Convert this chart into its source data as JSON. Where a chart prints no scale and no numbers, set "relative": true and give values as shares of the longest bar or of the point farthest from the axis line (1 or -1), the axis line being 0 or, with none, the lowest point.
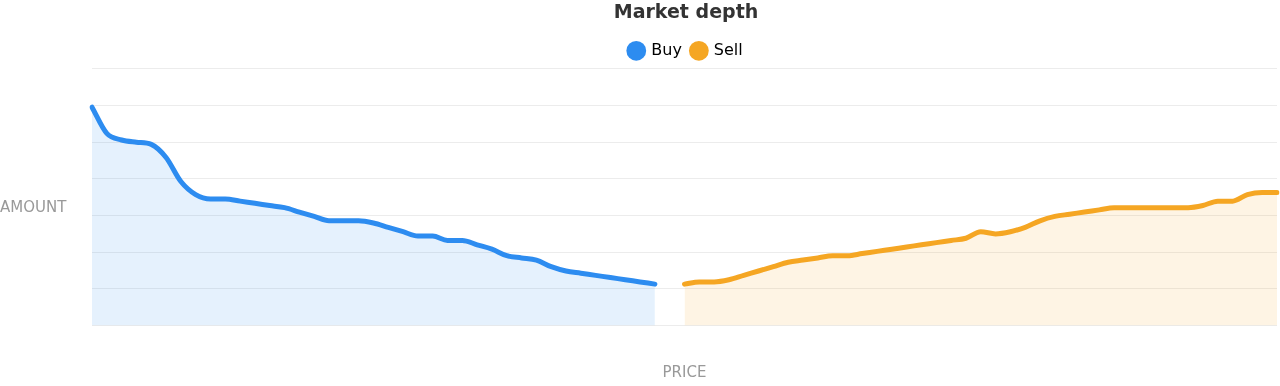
{
  "chart_data": {
    "type": "area",
    "title": "Market depth",
    "xlabel": "PRICE",
    "ylabel": "AMOUNT",
    "relative": true,
    "grid": "y",
    "legend": "top",
    "marker": "none",
    "line_style": "solid",
    "categories": [
      null,
      null,
      null,
      null,
      null,
      null,
      null,
      null,
      null,
      null,
      null,
      null,
      null,
      null,
      null,
      null,
      null,
      null,
      null,
      null,
      null,
      null,
      null,
      null,
      null,
      null,
      null,
      null,
      null,
      null,
      null,
      null,
      null,
      null,
      null,
      null,
      null,
      null,
      null,
      null,
      null,
      null,
      null,
      null,
      null,
      null,
      null,
      null,
      null,
      null,
      null,
      null,
      null,
      null,
      null,
      null,
      null,
      null,
      null,
      null,
      null,
      null,
      null,
      null,
      null,
      null,
      null,
      null,
      null,
      null,
      null,
      null,
      null,
      null,
      null,
      null,
      null,
      null,
      null,
      null,
      null
    ],
    "series": [
      {
        "name": "Buy",
        "color": "#2d8cf0",
        "values": [
          1.0,
          0.88,
          0.85,
          0.84,
          0.83,
          0.77,
          0.66,
          0.6,
          0.58,
          0.58,
          0.57,
          0.56,
          0.55,
          0.54,
          0.52,
          0.5,
          0.48,
          0.48,
          0.48,
          0.47,
          0.45,
          0.43,
          0.41,
          0.41,
          0.39,
          0.39,
          0.37,
          0.35,
          0.32,
          0.31,
          0.3,
          0.27,
          0.25,
          0.24,
          0.23,
          0.22,
          0.21,
          0.2,
          0.19,
          null,
          null,
          null,
          null,
          null,
          null,
          null,
          null,
          null,
          null,
          null,
          null,
          null,
          null,
          null,
          null,
          null,
          null,
          null,
          null,
          null,
          null,
          null,
          null,
          null,
          null,
          null,
          null,
          null,
          null,
          null,
          null,
          null,
          null,
          null,
          null,
          null,
          null,
          null,
          null,
          null,
          null
        ]
      },
      {
        "name": "Sell",
        "color": "#f5a623",
        "values": [
          null,
          null,
          null,
          null,
          null,
          null,
          null,
          null,
          null,
          null,
          null,
          null,
          null,
          null,
          null,
          null,
          null,
          null,
          null,
          null,
          null,
          null,
          null,
          null,
          null,
          null,
          null,
          null,
          null,
          null,
          null,
          null,
          null,
          null,
          null,
          null,
          null,
          null,
          null,
          null,
          0.19,
          0.2,
          0.2,
          0.21,
          0.23,
          0.25,
          0.27,
          0.29,
          0.3,
          0.31,
          0.32,
          0.32,
          0.33,
          0.34,
          0.35,
          0.36,
          0.37,
          0.38,
          0.39,
          0.4,
          0.43,
          0.42,
          0.43,
          0.45,
          0.48,
          0.5,
          0.51,
          0.52,
          0.53,
          0.54,
          0.54,
          0.54,
          0.54,
          0.54,
          0.54,
          0.55,
          0.57,
          0.57,
          0.6,
          0.61,
          0.61
        ]
      }
    ]
  }
}
